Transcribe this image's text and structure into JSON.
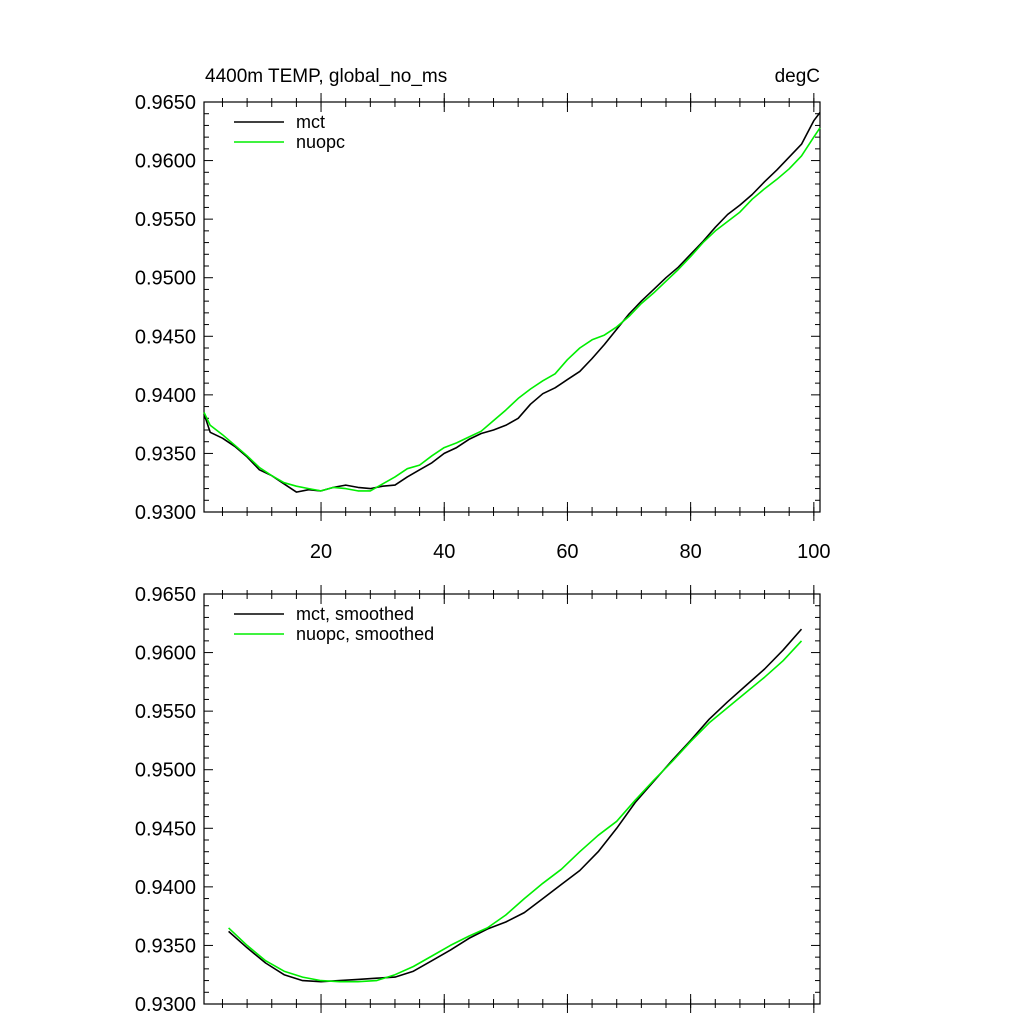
{
  "chart_data": [
    {
      "type": "line",
      "title": "4400m TEMP, global_no_ms",
      "units": "degC",
      "xlabel": "",
      "ylabel": "",
      "xlim": [
        1,
        101
      ],
      "ylim": [
        0.93,
        0.965
      ],
      "x_ticks": [
        20,
        40,
        60,
        80,
        100
      ],
      "x_tick_labels": [
        "20",
        "40",
        "60",
        "80",
        "100"
      ],
      "y_ticks": [
        0.93,
        0.935,
        0.94,
        0.945,
        0.95,
        0.955,
        0.96,
        0.965
      ],
      "y_tick_labels": [
        "0.9300",
        "0.9350",
        "0.9400",
        "0.9450",
        "0.9500",
        "0.9550",
        "0.9600",
        "0.9650"
      ],
      "legend_position": "top-left",
      "grid": false,
      "series": [
        {
          "name": "mct",
          "color": "#000000",
          "x": [
            1,
            2,
            4,
            6,
            8,
            10,
            12,
            14,
            16,
            18,
            20,
            22,
            24,
            26,
            28,
            30,
            32,
            34,
            36,
            38,
            40,
            42,
            44,
            46,
            48,
            50,
            52,
            54,
            56,
            58,
            60,
            62,
            64,
            66,
            68,
            70,
            72,
            74,
            76,
            78,
            80,
            82,
            84,
            86,
            88,
            90,
            92,
            94,
            96,
            98,
            100,
            101
          ],
          "y": [
            0.9384,
            0.9368,
            0.9363,
            0.9356,
            0.9347,
            0.9336,
            0.9331,
            0.9324,
            0.9317,
            0.9319,
            0.9318,
            0.9321,
            0.9323,
            0.9321,
            0.932,
            0.9322,
            0.9323,
            0.933,
            0.9336,
            0.9342,
            0.935,
            0.9355,
            0.9362,
            0.9367,
            0.937,
            0.9374,
            0.938,
            0.9392,
            0.9401,
            0.9406,
            0.9413,
            0.942,
            0.9431,
            0.9443,
            0.9456,
            0.9469,
            0.948,
            0.949,
            0.95,
            0.9509,
            0.952,
            0.9531,
            0.9543,
            0.9554,
            0.9562,
            0.9571,
            0.9582,
            0.9592,
            0.9603,
            0.9614,
            0.9634,
            0.9641
          ]
        },
        {
          "name": "nuopc",
          "color": "#00ee00",
          "x": [
            1,
            2,
            4,
            6,
            8,
            10,
            12,
            14,
            16,
            18,
            20,
            22,
            24,
            26,
            28,
            30,
            32,
            34,
            36,
            38,
            40,
            42,
            44,
            46,
            48,
            50,
            52,
            54,
            56,
            58,
            60,
            62,
            64,
            66,
            68,
            70,
            72,
            74,
            76,
            78,
            80,
            82,
            84,
            86,
            88,
            90,
            92,
            94,
            96,
            98,
            100,
            101
          ],
          "y": [
            0.9385,
            0.9374,
            0.9366,
            0.9357,
            0.9348,
            0.9338,
            0.9331,
            0.9325,
            0.9322,
            0.932,
            0.9318,
            0.9321,
            0.932,
            0.9318,
            0.9318,
            0.9324,
            0.933,
            0.9337,
            0.934,
            0.9348,
            0.9355,
            0.9359,
            0.9364,
            0.9369,
            0.9378,
            0.9387,
            0.9397,
            0.9405,
            0.9412,
            0.9418,
            0.943,
            0.944,
            0.9447,
            0.9451,
            0.9458,
            0.9467,
            0.9478,
            0.9487,
            0.9497,
            0.9507,
            0.9518,
            0.953,
            0.954,
            0.9548,
            0.9556,
            0.9567,
            0.9576,
            0.9584,
            0.9593,
            0.9604,
            0.962,
            0.9628
          ]
        }
      ]
    },
    {
      "type": "line",
      "title": "",
      "xlabel": "",
      "ylabel": "",
      "xlim": [
        1,
        101
      ],
      "ylim": [
        0.93,
        0.965
      ],
      "x_ticks": [
        20,
        40,
        60,
        80,
        100
      ],
      "y_ticks": [
        0.93,
        0.935,
        0.94,
        0.945,
        0.95,
        0.955,
        0.96,
        0.965
      ],
      "y_tick_labels": [
        "0.9300",
        "0.9350",
        "0.9400",
        "0.9450",
        "0.9500",
        "0.9550",
        "0.9600",
        "0.9650"
      ],
      "legend_position": "top-left",
      "grid": false,
      "series": [
        {
          "name": "mct, smoothed",
          "color": "#000000",
          "x": [
            5,
            8,
            11,
            14,
            17,
            20,
            23,
            26,
            29,
            32,
            35,
            38,
            41,
            44,
            47,
            50,
            53,
            56,
            59,
            62,
            65,
            68,
            71,
            74,
            77,
            80,
            83,
            86,
            89,
            92,
            95,
            98
          ],
          "y": [
            0.9362,
            0.9348,
            0.9335,
            0.9325,
            0.932,
            0.9319,
            0.932,
            0.9321,
            0.9322,
            0.9323,
            0.9328,
            0.9337,
            0.9346,
            0.9356,
            0.9364,
            0.937,
            0.9378,
            0.939,
            0.9402,
            0.9414,
            0.943,
            0.945,
            0.9472,
            0.949,
            0.9508,
            0.9525,
            0.9543,
            0.9558,
            0.9572,
            0.9586,
            0.9602,
            0.962
          ]
        },
        {
          "name": "nuopc, smoothed",
          "color": "#00ee00",
          "x": [
            5,
            8,
            11,
            14,
            17,
            20,
            23,
            26,
            29,
            32,
            35,
            38,
            41,
            44,
            47,
            50,
            53,
            56,
            59,
            62,
            65,
            68,
            71,
            74,
            77,
            80,
            83,
            86,
            89,
            92,
            95,
            98
          ],
          "y": [
            0.9365,
            0.935,
            0.9337,
            0.9328,
            0.9323,
            0.932,
            0.9319,
            0.9319,
            0.932,
            0.9325,
            0.9332,
            0.9341,
            0.935,
            0.9358,
            0.9365,
            0.9376,
            0.939,
            0.9403,
            0.9415,
            0.943,
            0.9444,
            0.9456,
            0.9474,
            0.9491,
            0.9507,
            0.9524,
            0.954,
            0.9553,
            0.9566,
            0.9579,
            0.9593,
            0.961
          ]
        }
      ]
    }
  ]
}
